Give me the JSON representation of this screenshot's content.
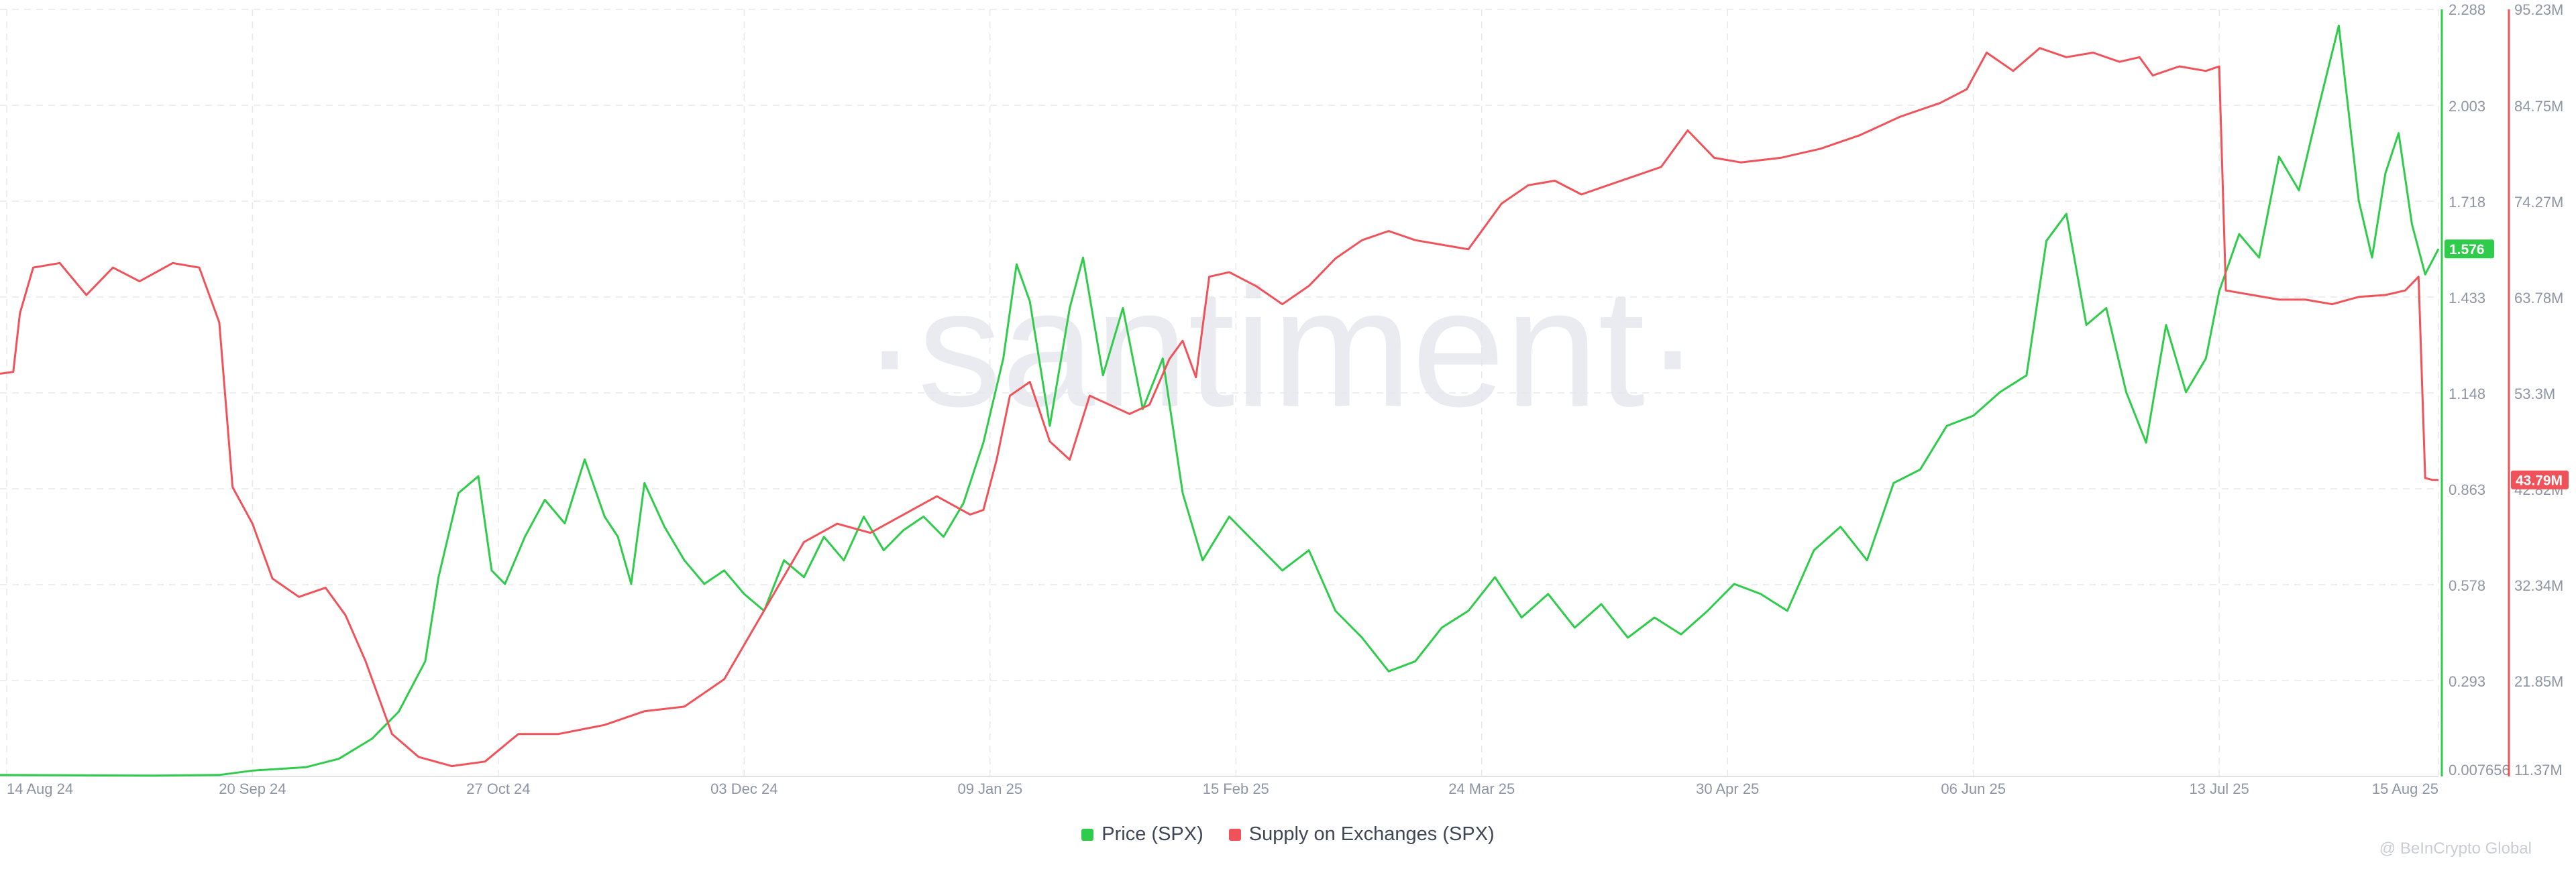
{
  "watermark": "·santiment·",
  "credit": "@ BeInCrypto Global",
  "colors": {
    "price": "#2ecc4a",
    "supply": "#f0525a",
    "grid": "#e6e8ed",
    "axis_text": "#8e94a3"
  },
  "chart_data": {
    "type": "line",
    "x_ticks": [
      "14 Aug 24",
      "20 Sep 24",
      "27 Oct 24",
      "03 Dec 24",
      "09 Jan 25",
      "15 Feb 25",
      "24 Mar 25",
      "30 Apr 25",
      "06 Jun 25",
      "13 Jul 25",
      "15 Aug 25"
    ],
    "x_tick_dates": [
      "2024-08-14",
      "2024-09-20",
      "2024-10-27",
      "2024-12-03",
      "2025-01-09",
      "2025-02-15",
      "2025-03-24",
      "2025-04-30",
      "2025-06-06",
      "2025-07-13",
      "2025-08-15"
    ],
    "x_range": [
      "2024-08-13",
      "2025-08-15"
    ],
    "y_left": {
      "ticks": [
        "2.288",
        "2.003",
        "1.718",
        "1.433",
        "1.148",
        "0.863",
        "0.578",
        "0.293",
        "0.007656"
      ],
      "range": [
        0.007656,
        2.288
      ],
      "current_label": "1.576"
    },
    "y_right": {
      "ticks": [
        "95.23M",
        "84.75M",
        "74.27M",
        "63.78M",
        "53.3M",
        "42.82M",
        "32.34M",
        "21.85M",
        "11.37M"
      ],
      "range": [
        11.37,
        95.23
      ],
      "unit": "M",
      "current_label": "43.79M"
    },
    "grid": true,
    "legend_position": "bottom-center",
    "series": [
      {
        "name": "Price (SPX)",
        "axis": "left",
        "color": "#2ecc4a",
        "points": [
          [
            "2024-08-13",
            0.012
          ],
          [
            "2024-08-25",
            0.011
          ],
          [
            "2024-09-05",
            0.01
          ],
          [
            "2024-09-15",
            0.012
          ],
          [
            "2024-09-20",
            0.025
          ],
          [
            "2024-09-28",
            0.035
          ],
          [
            "2024-10-03",
            0.06
          ],
          [
            "2024-10-08",
            0.12
          ],
          [
            "2024-10-12",
            0.2
          ],
          [
            "2024-10-16",
            0.35
          ],
          [
            "2024-10-18",
            0.6
          ],
          [
            "2024-10-21",
            0.85
          ],
          [
            "2024-10-24",
            0.9
          ],
          [
            "2024-10-26",
            0.62
          ],
          [
            "2024-10-28",
            0.58
          ],
          [
            "2024-10-31",
            0.72
          ],
          [
            "2024-11-03",
            0.83
          ],
          [
            "2024-11-06",
            0.76
          ],
          [
            "2024-11-09",
            0.95
          ],
          [
            "2024-11-12",
            0.78
          ],
          [
            "2024-11-14",
            0.72
          ],
          [
            "2024-11-16",
            0.58
          ],
          [
            "2024-11-18",
            0.88
          ],
          [
            "2024-11-21",
            0.75
          ],
          [
            "2024-11-24",
            0.65
          ],
          [
            "2024-11-27",
            0.58
          ],
          [
            "2024-11-30",
            0.62
          ],
          [
            "2024-12-03",
            0.55
          ],
          [
            "2024-12-06",
            0.5
          ],
          [
            "2024-12-09",
            0.65
          ],
          [
            "2024-12-12",
            0.6
          ],
          [
            "2024-12-15",
            0.72
          ],
          [
            "2024-12-18",
            0.65
          ],
          [
            "2024-12-21",
            0.78
          ],
          [
            "2024-12-24",
            0.68
          ],
          [
            "2024-12-27",
            0.74
          ],
          [
            "2024-12-30",
            0.78
          ],
          [
            "2025-01-02",
            0.72
          ],
          [
            "2025-01-05",
            0.82
          ],
          [
            "2025-01-08",
            1.0
          ],
          [
            "2025-01-11",
            1.25
          ],
          [
            "2025-01-13",
            1.53
          ],
          [
            "2025-01-15",
            1.42
          ],
          [
            "2025-01-18",
            1.05
          ],
          [
            "2025-01-21",
            1.4
          ],
          [
            "2025-01-23",
            1.55
          ],
          [
            "2025-01-26",
            1.2
          ],
          [
            "2025-01-29",
            1.4
          ],
          [
            "2025-02-01",
            1.1
          ],
          [
            "2025-02-04",
            1.25
          ],
          [
            "2025-02-07",
            0.85
          ],
          [
            "2025-02-10",
            0.65
          ],
          [
            "2025-02-14",
            0.78
          ],
          [
            "2025-02-18",
            0.7
          ],
          [
            "2025-02-22",
            0.62
          ],
          [
            "2025-02-26",
            0.68
          ],
          [
            "2025-03-02",
            0.5
          ],
          [
            "2025-03-06",
            0.42
          ],
          [
            "2025-03-10",
            0.32
          ],
          [
            "2025-03-14",
            0.35
          ],
          [
            "2025-03-18",
            0.45
          ],
          [
            "2025-03-22",
            0.5
          ],
          [
            "2025-03-26",
            0.6
          ],
          [
            "2025-03-30",
            0.48
          ],
          [
            "2025-04-03",
            0.55
          ],
          [
            "2025-04-07",
            0.45
          ],
          [
            "2025-04-11",
            0.52
          ],
          [
            "2025-04-15",
            0.42
          ],
          [
            "2025-04-19",
            0.48
          ],
          [
            "2025-04-23",
            0.43
          ],
          [
            "2025-04-27",
            0.5
          ],
          [
            "2025-05-01",
            0.58
          ],
          [
            "2025-05-05",
            0.55
          ],
          [
            "2025-05-09",
            0.5
          ],
          [
            "2025-05-13",
            0.68
          ],
          [
            "2025-05-17",
            0.75
          ],
          [
            "2025-05-21",
            0.65
          ],
          [
            "2025-05-25",
            0.88
          ],
          [
            "2025-05-29",
            0.92
          ],
          [
            "2025-06-02",
            1.05
          ],
          [
            "2025-06-06",
            1.08
          ],
          [
            "2025-06-10",
            1.15
          ],
          [
            "2025-06-14",
            1.2
          ],
          [
            "2025-06-17",
            1.6
          ],
          [
            "2025-06-20",
            1.68
          ],
          [
            "2025-06-23",
            1.35
          ],
          [
            "2025-06-26",
            1.4
          ],
          [
            "2025-06-29",
            1.15
          ],
          [
            "2025-07-02",
            1.0
          ],
          [
            "2025-07-05",
            1.35
          ],
          [
            "2025-07-08",
            1.15
          ],
          [
            "2025-07-11",
            1.25
          ],
          [
            "2025-07-13",
            1.45
          ],
          [
            "2025-07-16",
            1.62
          ],
          [
            "2025-07-19",
            1.55
          ],
          [
            "2025-07-22",
            1.85
          ],
          [
            "2025-07-25",
            1.75
          ],
          [
            "2025-07-28",
            2.0
          ],
          [
            "2025-07-31",
            2.24
          ],
          [
            "2025-08-03",
            1.72
          ],
          [
            "2025-08-05",
            1.55
          ],
          [
            "2025-08-07",
            1.8
          ],
          [
            "2025-08-09",
            1.92
          ],
          [
            "2025-08-11",
            1.65
          ],
          [
            "2025-08-13",
            1.5
          ],
          [
            "2025-08-15",
            1.576
          ]
        ]
      },
      {
        "name": "Supply on Exchanges (SPX)",
        "axis": "right",
        "color": "#f0525a",
        "points": [
          [
            "2024-08-13",
            55.4
          ],
          [
            "2024-08-15",
            55.6
          ],
          [
            "2024-08-16",
            62.0
          ],
          [
            "2024-08-18",
            67.0
          ],
          [
            "2024-08-22",
            67.5
          ],
          [
            "2024-08-26",
            64.0
          ],
          [
            "2024-08-30",
            67.0
          ],
          [
            "2024-09-03",
            65.5
          ],
          [
            "2024-09-08",
            67.5
          ],
          [
            "2024-09-12",
            67.0
          ],
          [
            "2024-09-15",
            61.0
          ],
          [
            "2024-09-17",
            43.0
          ],
          [
            "2024-09-20",
            39.0
          ],
          [
            "2024-09-23",
            33.0
          ],
          [
            "2024-09-27",
            31.0
          ],
          [
            "2024-10-01",
            32.0
          ],
          [
            "2024-10-04",
            29.0
          ],
          [
            "2024-10-07",
            24.0
          ],
          [
            "2024-10-11",
            16.0
          ],
          [
            "2024-10-15",
            13.5
          ],
          [
            "2024-10-20",
            12.5
          ],
          [
            "2024-10-25",
            13.0
          ],
          [
            "2024-10-30",
            16.0
          ],
          [
            "2024-11-05",
            16.0
          ],
          [
            "2024-11-12",
            17.0
          ],
          [
            "2024-11-18",
            18.5
          ],
          [
            "2024-11-24",
            19.0
          ],
          [
            "2024-11-30",
            22.0
          ],
          [
            "2024-12-04",
            27.0
          ],
          [
            "2024-12-08",
            32.0
          ],
          [
            "2024-12-12",
            37.0
          ],
          [
            "2024-12-17",
            39.0
          ],
          [
            "2024-12-22",
            38.0
          ],
          [
            "2024-12-27",
            40.0
          ],
          [
            "2025-01-01",
            42.0
          ],
          [
            "2025-01-06",
            40.0
          ],
          [
            "2025-01-08",
            40.5
          ],
          [
            "2025-01-10",
            46.0
          ],
          [
            "2025-01-12",
            53.0
          ],
          [
            "2025-01-15",
            54.5
          ],
          [
            "2025-01-18",
            48.0
          ],
          [
            "2025-01-21",
            46.0
          ],
          [
            "2025-01-24",
            53.0
          ],
          [
            "2025-01-27",
            52.0
          ],
          [
            "2025-01-30",
            51.0
          ],
          [
            "2025-02-02",
            52.0
          ],
          [
            "2025-02-05",
            57.0
          ],
          [
            "2025-02-07",
            59.0
          ],
          [
            "2025-02-09",
            55.0
          ],
          [
            "2025-02-11",
            66.0
          ],
          [
            "2025-02-14",
            66.5
          ],
          [
            "2025-02-18",
            65.0
          ],
          [
            "2025-02-22",
            63.0
          ],
          [
            "2025-02-26",
            65.0
          ],
          [
            "2025-03-02",
            68.0
          ],
          [
            "2025-03-06",
            70.0
          ],
          [
            "2025-03-10",
            71.0
          ],
          [
            "2025-03-14",
            70.0
          ],
          [
            "2025-03-18",
            69.5
          ],
          [
            "2025-03-22",
            69.0
          ],
          [
            "2025-03-27",
            74.0
          ],
          [
            "2025-03-31",
            76.0
          ],
          [
            "2025-04-04",
            76.5
          ],
          [
            "2025-04-08",
            75.0
          ],
          [
            "2025-04-12",
            76.0
          ],
          [
            "2025-04-16",
            77.0
          ],
          [
            "2025-04-20",
            78.0
          ],
          [
            "2025-04-24",
            82.0
          ],
          [
            "2025-04-28",
            79.0
          ],
          [
            "2025-05-02",
            78.5
          ],
          [
            "2025-05-08",
            79.0
          ],
          [
            "2025-05-14",
            80.0
          ],
          [
            "2025-05-20",
            81.5
          ],
          [
            "2025-05-26",
            83.5
          ],
          [
            "2025-06-01",
            85.0
          ],
          [
            "2025-06-05",
            86.5
          ],
          [
            "2025-06-08",
            90.5
          ],
          [
            "2025-06-12",
            88.5
          ],
          [
            "2025-06-16",
            91.0
          ],
          [
            "2025-06-20",
            90.0
          ],
          [
            "2025-06-24",
            90.5
          ],
          [
            "2025-06-28",
            89.5
          ],
          [
            "2025-07-01",
            90.0
          ],
          [
            "2025-07-03",
            88.0
          ],
          [
            "2025-07-07",
            89.0
          ],
          [
            "2025-07-11",
            88.5
          ],
          [
            "2025-07-13",
            89.0
          ],
          [
            "2025-07-14",
            64.5
          ],
          [
            "2025-07-18",
            64.0
          ],
          [
            "2025-07-22",
            63.5
          ],
          [
            "2025-07-26",
            63.5
          ],
          [
            "2025-07-30",
            63.0
          ],
          [
            "2025-08-03",
            63.8
          ],
          [
            "2025-08-07",
            64.0
          ],
          [
            "2025-08-10",
            64.5
          ],
          [
            "2025-08-12",
            66.0
          ],
          [
            "2025-08-13",
            44.0
          ],
          [
            "2025-08-14",
            43.8
          ],
          [
            "2025-08-15",
            43.79
          ]
        ]
      }
    ]
  }
}
